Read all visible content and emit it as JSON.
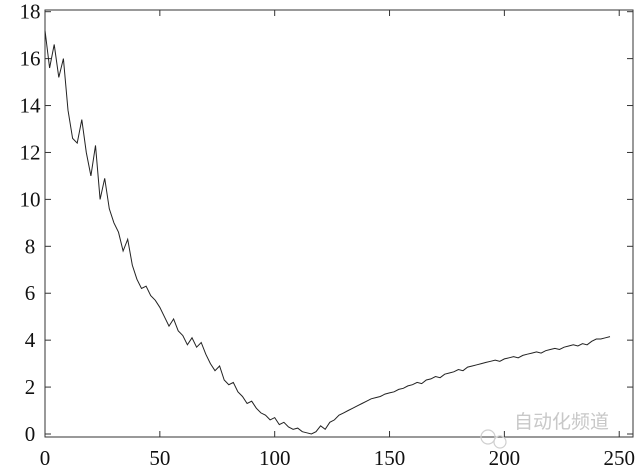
{
  "chart_data": {
    "type": "line",
    "title": "",
    "xlabel": "",
    "ylabel": "",
    "xlim": [
      0,
      256
    ],
    "ylim": [
      0,
      18.2
    ],
    "xticks": [
      0,
      50,
      100,
      150,
      200,
      250
    ],
    "yticks": [
      0,
      2,
      4,
      6,
      8,
      10,
      12,
      14,
      16,
      18
    ],
    "xtick_labels": [
      "0",
      "50",
      "100",
      "150",
      "200",
      "250"
    ],
    "ytick_labels": [
      "0",
      "2",
      "4",
      "6",
      "8",
      "10",
      "12",
      "14",
      "16",
      "18"
    ],
    "grid": false,
    "line_color": "#222222",
    "series": [
      {
        "x": [
          0,
          2,
          4,
          6,
          8,
          10,
          12,
          14,
          16,
          18,
          20,
          22,
          24,
          26,
          28,
          30,
          32,
          34,
          36,
          38,
          40,
          42,
          44,
          46,
          48,
          50,
          52,
          54,
          56,
          58,
          60,
          62,
          64,
          66,
          68,
          70,
          72,
          74,
          76,
          78,
          80,
          82,
          84,
          86,
          88,
          90,
          92,
          94,
          96,
          98,
          100,
          102,
          104,
          106,
          108,
          110,
          112,
          114,
          116,
          118,
          120,
          122,
          124,
          126,
          128,
          130,
          132,
          134,
          136,
          138,
          140,
          142,
          144,
          146,
          148,
          150,
          152,
          154,
          156,
          158,
          160,
          162,
          164,
          166,
          168,
          170,
          172,
          174,
          176,
          178,
          180,
          182,
          184,
          186,
          188,
          190,
          192,
          194,
          196,
          198,
          200,
          202,
          204,
          206,
          208,
          210,
          212,
          214,
          216,
          218,
          220,
          222,
          224,
          226,
          228,
          230,
          232,
          234,
          236,
          238,
          240,
          242,
          244,
          246
        ],
        "y": [
          17.2,
          15.6,
          16.6,
          15.2,
          16.0,
          13.8,
          12.6,
          12.4,
          13.4,
          12.0,
          11.0,
          12.3,
          10.0,
          10.9,
          9.6,
          9.0,
          8.6,
          7.8,
          8.3,
          7.2,
          6.6,
          6.2,
          6.3,
          5.9,
          5.7,
          5.4,
          5.0,
          4.6,
          4.9,
          4.4,
          4.2,
          3.8,
          4.1,
          3.7,
          3.9,
          3.4,
          3.0,
          2.7,
          2.9,
          2.3,
          2.1,
          2.2,
          1.8,
          1.6,
          1.3,
          1.4,
          1.1,
          0.9,
          0.8,
          0.6,
          0.7,
          0.4,
          0.5,
          0.3,
          0.2,
          0.25,
          0.1,
          0.05,
          0.0,
          0.1,
          0.35,
          0.2,
          0.5,
          0.6,
          0.8,
          0.9,
          1.0,
          1.1,
          1.2,
          1.3,
          1.4,
          1.5,
          1.55,
          1.6,
          1.7,
          1.75,
          1.8,
          1.9,
          1.95,
          2.05,
          2.1,
          2.2,
          2.15,
          2.3,
          2.35,
          2.45,
          2.4,
          2.55,
          2.6,
          2.65,
          2.75,
          2.7,
          2.85,
          2.9,
          2.95,
          3.0,
          3.05,
          3.1,
          3.15,
          3.1,
          3.2,
          3.25,
          3.3,
          3.25,
          3.35,
          3.4,
          3.45,
          3.5,
          3.45,
          3.55,
          3.6,
          3.65,
          3.6,
          3.7,
          3.75,
          3.8,
          3.75,
          3.85,
          3.8,
          3.95,
          4.05,
          4.05,
          4.1,
          4.15
        ]
      }
    ]
  },
  "watermark": {
    "text": "自动化频道"
  }
}
